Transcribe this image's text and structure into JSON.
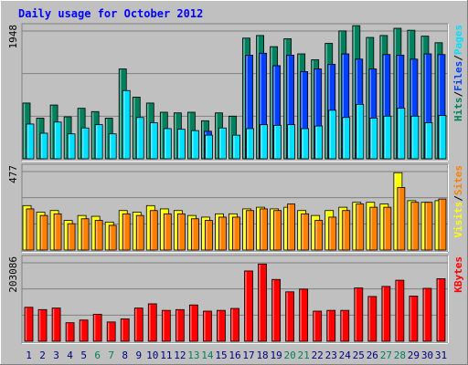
{
  "chart_data": {
    "type": "bar",
    "title": "Daily usage for October 2012",
    "categories": [
      "1",
      "2",
      "3",
      "4",
      "5",
      "6",
      "7",
      "8",
      "9",
      "10",
      "11",
      "12",
      "13",
      "14",
      "15",
      "16",
      "17",
      "18",
      "19",
      "20",
      "21",
      "22",
      "23",
      "24",
      "25",
      "26",
      "27",
      "28",
      "29",
      "30",
      "31"
    ],
    "weekend_days": [
      "6",
      "7",
      "13",
      "14",
      "20",
      "21",
      "27",
      "28"
    ],
    "colors": {
      "hits": "#00805C",
      "files": "#0040FF",
      "pages": "#00E0FF",
      "visits": "#FFFF00",
      "sites": "#FF8000",
      "kbytes": "#FF0000",
      "weekday_label": "#000080",
      "weekend_label": "#00805C",
      "background": "#C0C0C0",
      "title": "#0000FF"
    },
    "panels": [
      {
        "id": "hits-files-pages",
        "ymax_label": "1948",
        "ymax": 1948,
        "legend": [
          {
            "text": "Pages",
            "series": "pages"
          },
          {
            "text": "/",
            "series": "sep"
          },
          {
            "text": "Files",
            "series": "files"
          },
          {
            "text": "/",
            "series": "sep"
          },
          {
            "text": "Hits",
            "series": "hits"
          }
        ],
        "series": [
          {
            "key": "hits",
            "values": [
              850,
              620,
              820,
              640,
              770,
              720,
              620,
              1370,
              940,
              850,
              710,
              700,
              710,
              580,
              700,
              650,
              1840,
              1880,
              1710,
              1830,
              1600,
              1510,
              1760,
              1950,
              2030,
              1850,
              1880,
              1990,
              1960,
              1870,
              1770
            ]
          },
          {
            "key": "files",
            "values": [
              0,
              0,
              0,
              0,
              0,
              0,
              0,
              0,
              0,
              0,
              0,
              0,
              0,
              420,
              0,
              0,
              1580,
              1610,
              1420,
              1580,
              1330,
              1370,
              1440,
              1600,
              1520,
              1370,
              1590,
              1580,
              1520,
              1600,
              1590
            ]
          },
          {
            "key": "pages",
            "values": [
              530,
              390,
              560,
              380,
              470,
              520,
              380,
              1040,
              630,
              550,
              460,
              450,
              430,
              360,
              470,
              360,
              460,
              520,
              510,
              520,
              460,
              500,
              740,
              630,
              830,
              620,
              650,
              770,
              650,
              550,
              660
            ]
          }
        ]
      },
      {
        "id": "visits-sites",
        "ymax_label": "477",
        "ymax": 477,
        "legend": [
          {
            "text": "Sites",
            "series": "sites"
          },
          {
            "text": "/",
            "series": "sep"
          },
          {
            "text": "Visits",
            "series": "visits"
          }
        ],
        "series": [
          {
            "key": "visits",
            "values": [
              270,
              230,
              240,
              180,
              210,
              205,
              170,
              240,
              230,
              270,
              250,
              240,
              210,
              200,
              220,
              220,
              250,
              260,
              250,
              260,
              240,
              210,
              240,
              260,
              290,
              290,
              280,
              470,
              300,
              290,
              300
            ]
          },
          {
            "key": "sites",
            "values": [
              250,
              210,
              220,
              160,
              190,
              180,
              150,
              220,
              210,
              240,
              220,
              220,
              190,
              180,
              200,
              200,
              240,
              250,
              240,
              280,
              220,
              180,
              200,
              240,
              280,
              260,
              260,
              380,
              290,
              290,
              310
            ]
          }
        ]
      },
      {
        "id": "kbytes",
        "ymax_label": "203086",
        "ymax": 203086,
        "legend": [
          {
            "text": "KBytes",
            "series": "kbytes"
          }
        ],
        "series": [
          {
            "key": "kbytes",
            "values": [
              88000,
              82000,
              86000,
              48000,
              55000,
              70000,
              50000,
              58000,
              86000,
              97000,
              80000,
              82000,
              94000,
              78000,
              80000,
              85000,
              182000,
              200000,
              160000,
              128000,
              135000,
              78000,
              80000,
              80000,
              138000,
              116000,
              142000,
              158000,
              117000,
              137000,
              162000
            ]
          }
        ]
      }
    ]
  }
}
